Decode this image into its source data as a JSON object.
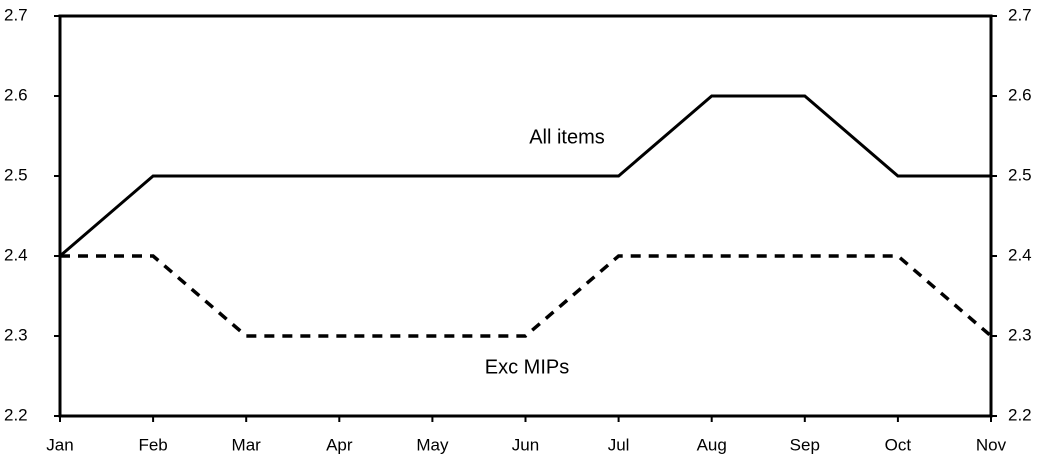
{
  "chart_data": {
    "type": "line",
    "categories": [
      "Jan",
      "Feb",
      "Mar",
      "Apr",
      "May",
      "Jun",
      "Jul",
      "Aug",
      "Sep",
      "Oct",
      "Nov"
    ],
    "series": [
      {
        "name": "All items",
        "color": "#000000",
        "style": "solid",
        "values": [
          2.4,
          2.5,
          2.5,
          2.5,
          2.5,
          2.5,
          2.5,
          2.6,
          2.6,
          2.5,
          2.5
        ]
      },
      {
        "name": "Exc MIPs",
        "color": "#000000",
        "style": "dashed",
        "values": [
          2.4,
          2.4,
          2.3,
          2.3,
          2.3,
          2.3,
          2.4,
          2.4,
          2.4,
          2.4,
          2.3
        ]
      }
    ],
    "ylim": [
      2.2,
      2.7
    ],
    "yticks": [
      2.2,
      2.3,
      2.4,
      2.5,
      2.6,
      2.7
    ],
    "y2lim": [
      2.2,
      2.7
    ],
    "y2ticks": [
      2.2,
      2.3,
      2.4,
      2.5,
      2.6,
      2.7
    ],
    "grid": false
  }
}
